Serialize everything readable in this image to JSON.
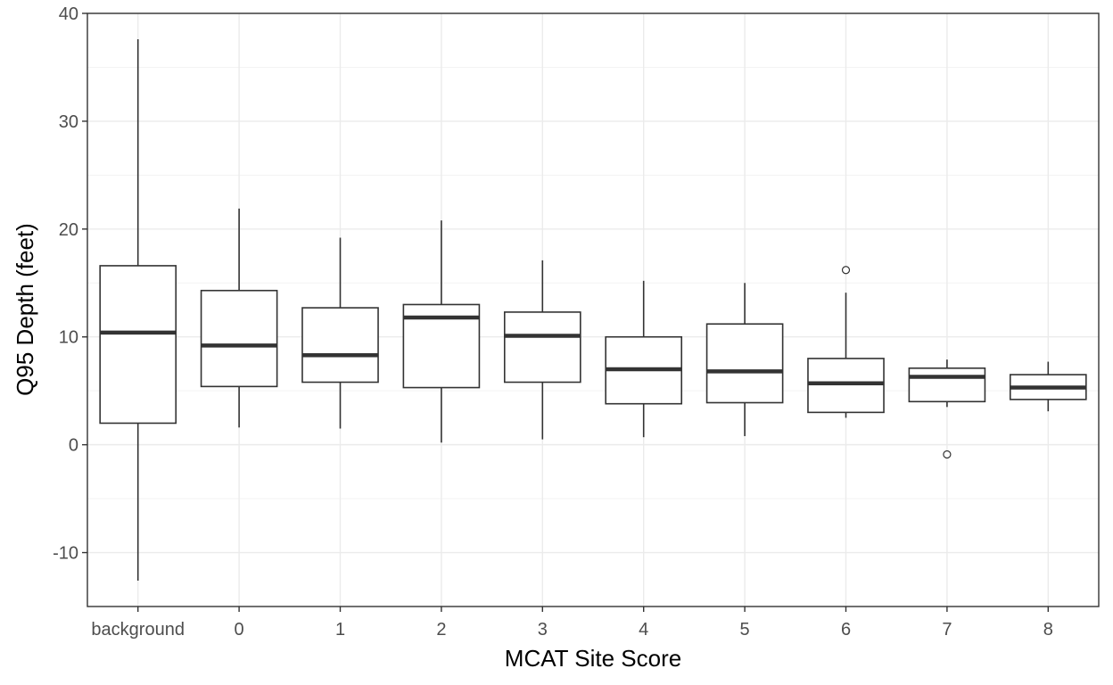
{
  "chart_data": {
    "type": "boxplot",
    "xlabel": "MCAT Site Score",
    "ylabel": "Q95 Depth (feet)",
    "ylim": [
      -15,
      40
    ],
    "y_ticks": [
      -10,
      0,
      10,
      20,
      30,
      40
    ],
    "y_tick_labels": [
      "-10",
      "0",
      "10",
      "20",
      "30",
      "40"
    ],
    "grid": true,
    "categories": [
      "background",
      "0",
      "1",
      "2",
      "3",
      "4",
      "5",
      "6",
      "7",
      "8"
    ],
    "boxes": [
      {
        "category": "background",
        "lower_whisker": -12.6,
        "q1": 2.0,
        "median": 10.4,
        "q3": 16.6,
        "upper_whisker": 37.6,
        "outliers": []
      },
      {
        "category": "0",
        "lower_whisker": 1.6,
        "q1": 5.4,
        "median": 9.2,
        "q3": 14.3,
        "upper_whisker": 21.9,
        "outliers": []
      },
      {
        "category": "1",
        "lower_whisker": 1.5,
        "q1": 5.8,
        "median": 8.3,
        "q3": 12.7,
        "upper_whisker": 19.2,
        "outliers": []
      },
      {
        "category": "2",
        "lower_whisker": 0.2,
        "q1": 5.3,
        "median": 11.8,
        "q3": 13.0,
        "upper_whisker": 20.8,
        "outliers": []
      },
      {
        "category": "3",
        "lower_whisker": 0.5,
        "q1": 5.8,
        "median": 10.1,
        "q3": 12.3,
        "upper_whisker": 17.1,
        "outliers": []
      },
      {
        "category": "4",
        "lower_whisker": 0.7,
        "q1": 3.8,
        "median": 7.0,
        "q3": 10.0,
        "upper_whisker": 15.2,
        "outliers": []
      },
      {
        "category": "5",
        "lower_whisker": 0.8,
        "q1": 3.9,
        "median": 6.8,
        "q3": 11.2,
        "upper_whisker": 15.0,
        "outliers": []
      },
      {
        "category": "6",
        "lower_whisker": 2.5,
        "q1": 3.0,
        "median": 5.7,
        "q3": 8.0,
        "upper_whisker": 14.1,
        "outliers": [
          16.2
        ]
      },
      {
        "category": "7",
        "lower_whisker": 3.5,
        "q1": 4.0,
        "median": 6.3,
        "q3": 7.1,
        "upper_whisker": 7.9,
        "outliers": [
          -0.9
        ]
      },
      {
        "category": "8",
        "lower_whisker": 3.1,
        "q1": 4.2,
        "median": 5.3,
        "q3": 6.5,
        "upper_whisker": 7.7,
        "outliers": []
      }
    ]
  }
}
